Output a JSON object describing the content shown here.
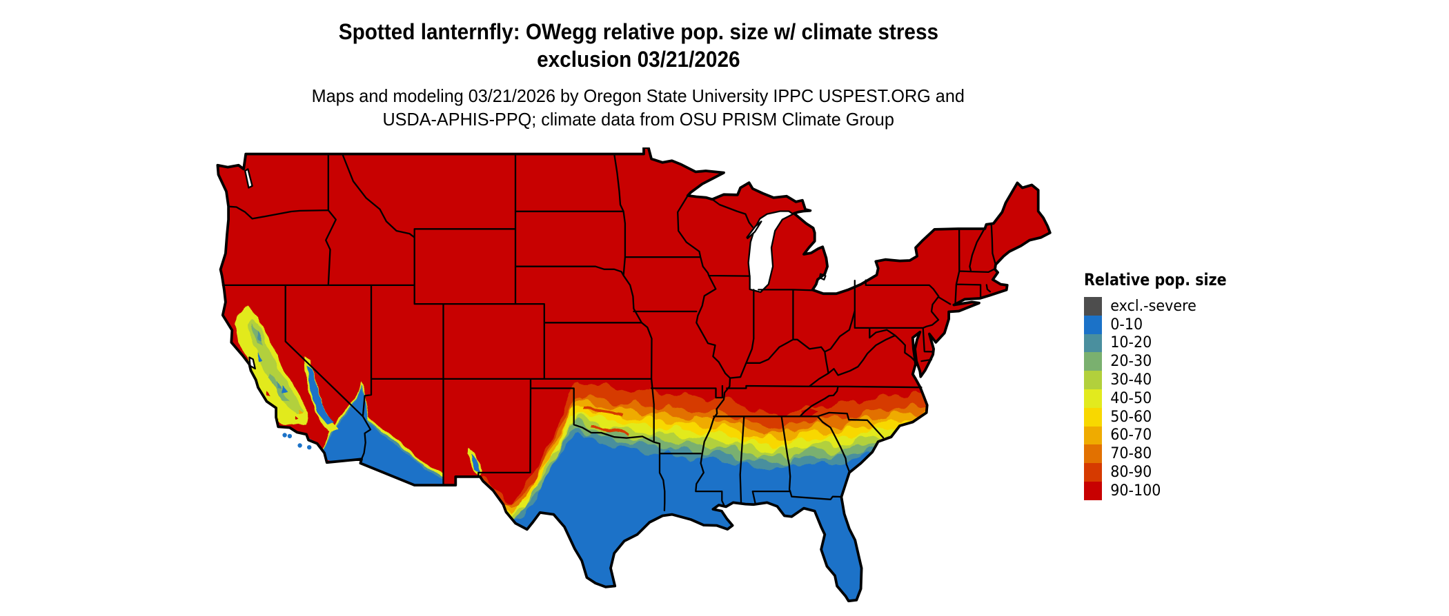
{
  "header": {
    "title_line1": "Spotted lanternfly: OWegg relative pop. size w/ climate stress",
    "title_line2": "exclusion 03/21/2026",
    "subtitle_line1": "Maps and modeling 03/21/2026 by Oregon State University IPPC USPEST.ORG and",
    "subtitle_line2": "USDA-APHIS-PPQ; climate data from OSU PRISM Climate Group"
  },
  "legend": {
    "title": "Relative pop. size",
    "entries": [
      {
        "label": "excl.-severe",
        "color": "#4d4d4d"
      },
      {
        "label": "0-10",
        "color": "#1b72c8"
      },
      {
        "label": "10-20",
        "color": "#4a8f9e"
      },
      {
        "label": "20-30",
        "color": "#7ab06f"
      },
      {
        "label": "30-40",
        "color": "#b2d03c"
      },
      {
        "label": "40-50",
        "color": "#e2ea1e"
      },
      {
        "label": "50-60",
        "color": "#f8d800"
      },
      {
        "label": "60-70",
        "color": "#efab00"
      },
      {
        "label": "70-80",
        "color": "#e27100"
      },
      {
        "label": "80-90",
        "color": "#d63a00"
      },
      {
        "label": "90-100",
        "color": "#c80101"
      }
    ]
  },
  "map": {
    "border_color": "#000000",
    "background_color": "#ffffff",
    "base_category": "90-100"
  }
}
